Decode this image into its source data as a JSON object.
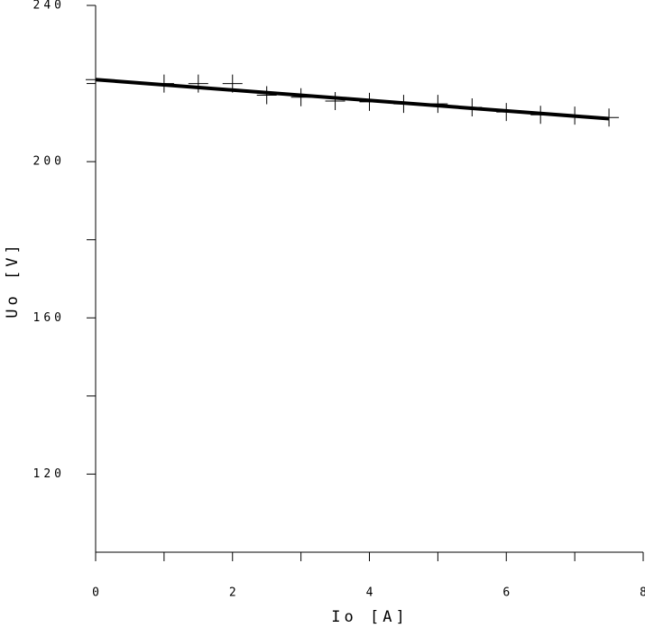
{
  "chart_data": {
    "type": "scatter",
    "xlabel": "Io [A]",
    "ylabel": "Uo [V]",
    "x": [
      0,
      1,
      1.5,
      2,
      2.5,
      3,
      3.5,
      4,
      4.5,
      5,
      5.5,
      6,
      6.5,
      7,
      7.5
    ],
    "values": [
      221,
      220,
      220,
      220,
      217,
      216.5,
      215.5,
      215.3,
      214.8,
      214.8,
      213.9,
      212.7,
      212,
      211.8,
      211.3
    ],
    "fit": {
      "x": [
        0,
        7.5
      ],
      "y": [
        221,
        211
      ]
    },
    "color": "#000000",
    "xlim": [
      0,
      8
    ],
    "ylim": [
      100,
      240
    ],
    "xticks": [
      0,
      2,
      4,
      6,
      8
    ],
    "minor_xticks": [
      1,
      3,
      5,
      7
    ],
    "yticks": [
      120,
      160,
      200,
      240
    ],
    "minor_yticks": [
      140,
      180,
      220
    ],
    "grid": false
  }
}
